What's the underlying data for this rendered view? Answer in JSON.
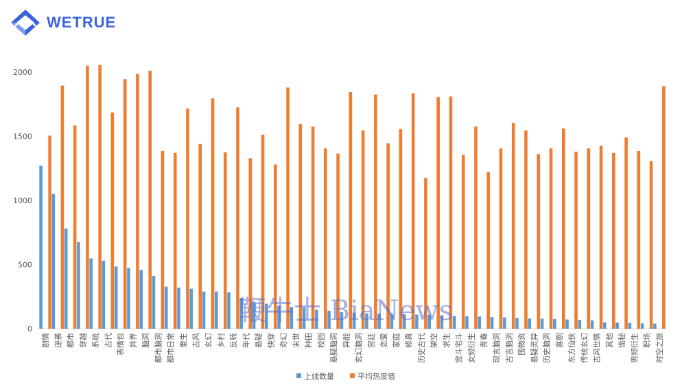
{
  "brand": {
    "name": "WETRUE"
  },
  "watermark": "鞭牛士 BiaNews",
  "colors": {
    "series1": "#5b9bd5",
    "series2": "#ed7d31",
    "axis": "#d9d9d9",
    "text": "#595959",
    "brand": "#3a63d8"
  },
  "chart_data": {
    "type": "bar",
    "title": "",
    "xlabel": "",
    "ylabel": "",
    "ylim": [
      0,
      2000
    ],
    "yticks": [
      0,
      500,
      1000,
      1500,
      2000
    ],
    "legend_position": "bottom",
    "grid": false,
    "categories": [
      "剧情",
      "逆袭",
      "都市",
      "穿越",
      "系统",
      "古代",
      "表情包",
      "异界",
      "脑洞",
      "都市脑洞",
      "都市日常",
      "重生",
      "古风",
      "玄幻",
      "乡村",
      "反转",
      "年代",
      "悬疑",
      "快穿",
      "奇幻",
      "末世",
      "种田",
      "校园",
      "悬疑脑洞",
      "异能",
      "玄幻脑洞",
      "宫廷",
      "恋爱",
      "家庭",
      "修真",
      "历史古代",
      "架空",
      "求生",
      "宫斗宅斗",
      "女频衍生",
      "青春",
      "现言脑洞",
      "古言脑洞",
      "囤物资",
      "悬疑灵异",
      "历史脑洞",
      "喜剧",
      "东方仙侠",
      "传统玄幻",
      "古风世情",
      "其他",
      "诡秘",
      "男频衍生",
      "职场",
      "时空之旅"
    ],
    "series": [
      {
        "name": "上线数量",
        "values": [
          1270,
          1050,
          780,
          675,
          548,
          530,
          485,
          472,
          458,
          412,
          328,
          320,
          312,
          290,
          290,
          283,
          240,
          210,
          195,
          180,
          170,
          165,
          148,
          140,
          130,
          125,
          120,
          118,
          115,
          112,
          110,
          108,
          105,
          100,
          98,
          95,
          90,
          88,
          85,
          80,
          78,
          75,
          72,
          70,
          65,
          50,
          48,
          45,
          42,
          40
        ]
      },
      {
        "name": "平均热度值",
        "values": [
          1505,
          1895,
          1585,
          2050,
          2055,
          1685,
          1945,
          1985,
          2010,
          1385,
          1370,
          1715,
          1440,
          1795,
          1375,
          1725,
          1330,
          1510,
          1280,
          1880,
          1595,
          1575,
          1405,
          1365,
          1845,
          1545,
          1825,
          1445,
          1555,
          1835,
          1175,
          1805,
          1810,
          1355,
          1575,
          1220,
          1405,
          1605,
          1545,
          1360,
          1405,
          1560,
          1380,
          1405,
          1425,
          1370,
          1490,
          1385,
          1305,
          1890
        ]
      }
    ]
  }
}
